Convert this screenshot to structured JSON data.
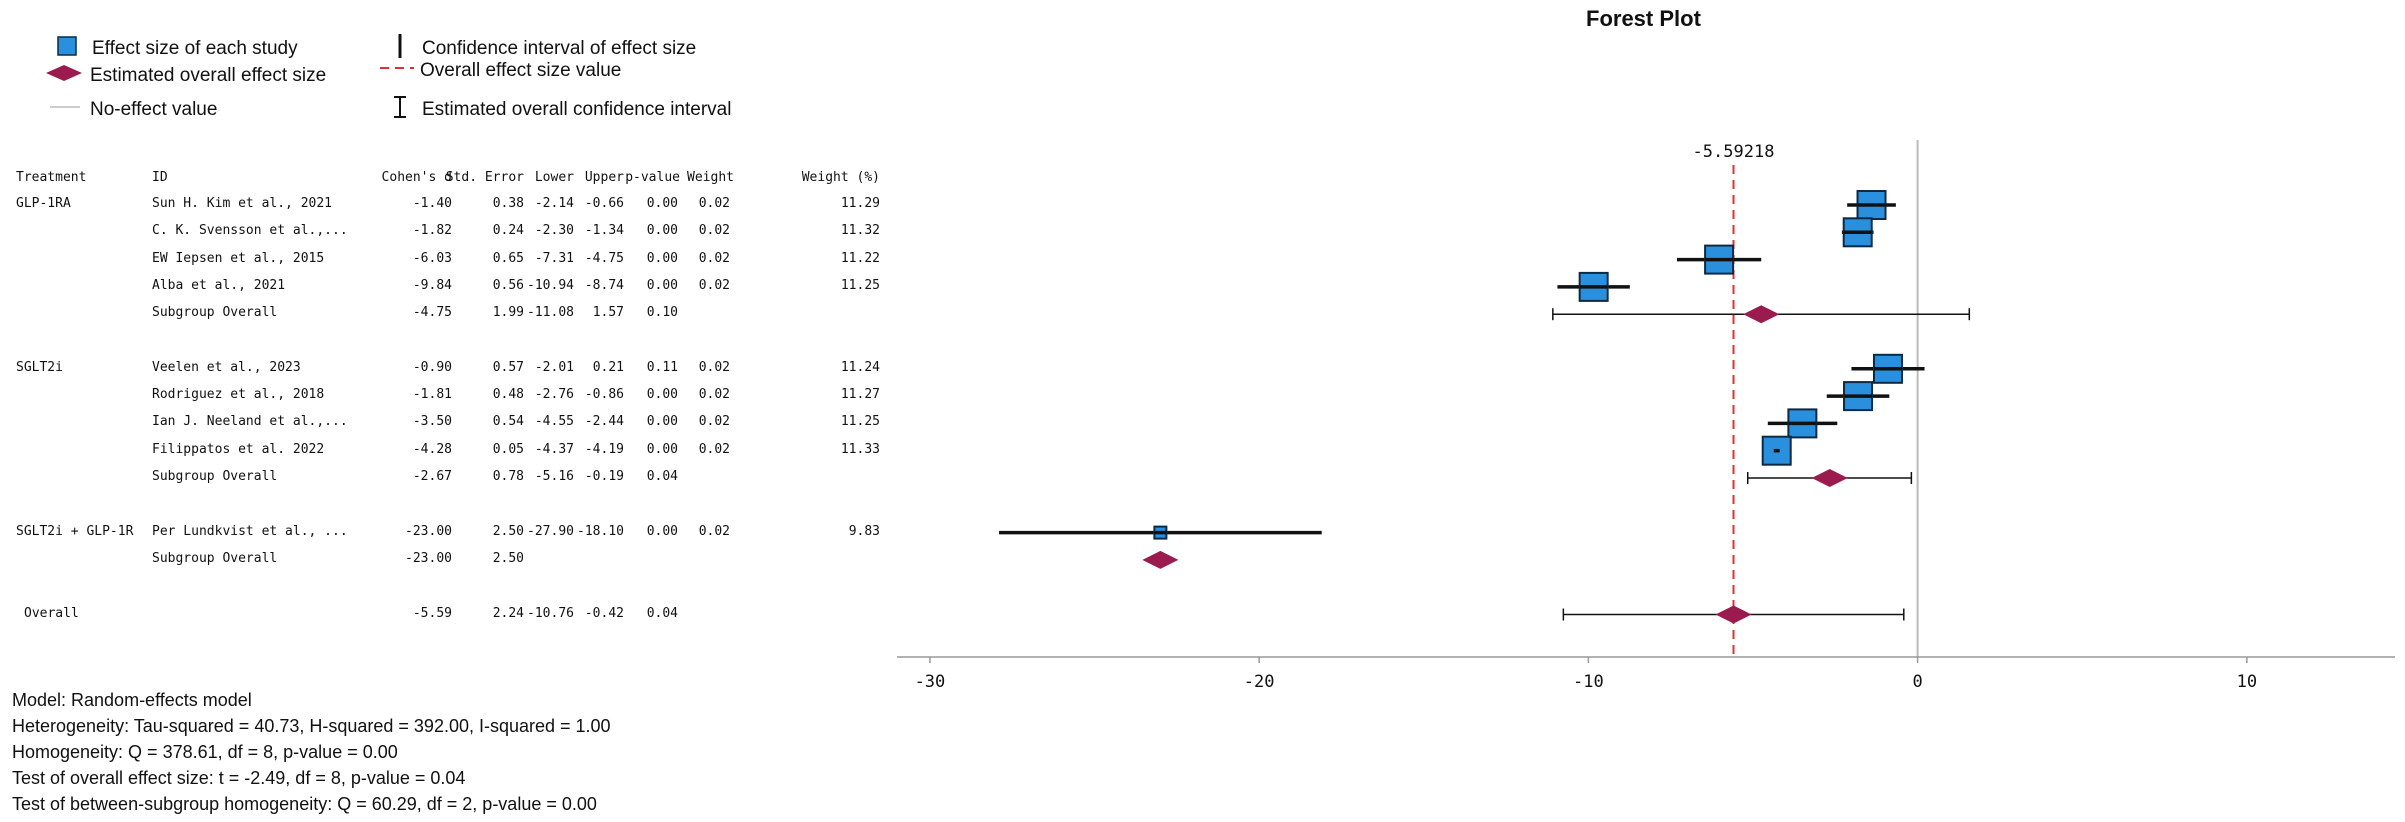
{
  "legend": {
    "study_effect": "Effect size of each study",
    "overall_effect": "Estimated overall effect size",
    "no_effect": "No-effect value",
    "ci_study": "Confidence interval of effect size",
    "overall_value": "Overall effect size value",
    "overall_ci": "Estimated overall confidence interval"
  },
  "columns": [
    "Treatment",
    "ID",
    "Cohen's d",
    "Std. Error",
    "Lower",
    "Upper",
    "p-value",
    "Weight",
    "Weight (%)"
  ],
  "stats": {
    "model": "Model: Random-effects model",
    "heterogeneity": "Heterogeneity: Tau-squared = 40.73, H-squared = 392.00, I-squared = 1.00",
    "homogeneity": "Homogeneity: Q = 378.61, df = 8, p-value = 0.00",
    "overall_test": "Test of overall effect size: t = -2.49, df = 8, p-value = 0.04",
    "between_test": "Test of between-subgroup homogeneity: Q = 60.29, df = 2, p-value = 0.00"
  },
  "colors": {
    "study_fill": "#2a8fdc",
    "study_stroke": "#0d2a45",
    "diamond": "#9b1b4f",
    "ref_line": "#e03030",
    "ci_line": "#111111",
    "zero_line": "#bbbbbb"
  },
  "chart_data": {
    "type": "forest",
    "title": "Forest Plot",
    "xlim": [
      -31,
      14.5
    ],
    "xticks": [
      -30,
      -20,
      -10,
      0,
      10
    ],
    "overall_value": -5.59218,
    "overall_value_label": "-5.59218",
    "no_effect_value": 0,
    "rows": [
      {
        "kind": "study",
        "treatment": "GLP-1RA",
        "id": "Sun H. Kim et al., 2021",
        "d": -1.4,
        "d_text": "-1.40",
        "se": "0.38",
        "lower": -2.14,
        "lower_text": "-2.14",
        "upper": -0.66,
        "upper_text": "-0.66",
        "p": "0.00",
        "weight": "0.02",
        "weight_pct": "11.29",
        "wp": 11.29
      },
      {
        "kind": "study",
        "treatment": "",
        "id": "C. K. Svensson et al.,...",
        "d": -1.82,
        "d_text": "-1.82",
        "se": "0.24",
        "lower": -2.3,
        "lower_text": "-2.30",
        "upper": -1.34,
        "upper_text": "-1.34",
        "p": "0.00",
        "weight": "0.02",
        "weight_pct": "11.32",
        "wp": 11.32
      },
      {
        "kind": "study",
        "treatment": "",
        "id": "EW Iepsen et al., 2015",
        "d": -6.03,
        "d_text": "-6.03",
        "se": "0.65",
        "lower": -7.31,
        "lower_text": "-7.31",
        "upper": -4.75,
        "upper_text": "-4.75",
        "p": "0.00",
        "weight": "0.02",
        "weight_pct": "11.22",
        "wp": 11.22
      },
      {
        "kind": "study",
        "treatment": "",
        "id": "Alba et al., 2021",
        "d": -9.84,
        "d_text": "-9.84",
        "se": "0.56",
        "lower": -10.94,
        "lower_text": "-10.94",
        "upper": -8.74,
        "upper_text": "-8.74",
        "p": "0.00",
        "weight": "0.02",
        "weight_pct": "11.25",
        "wp": 11.25
      },
      {
        "kind": "subgroup",
        "treatment": "",
        "id": "Subgroup Overall",
        "d": -4.75,
        "d_text": "-4.75",
        "se": "1.99",
        "lower": -11.08,
        "lower_text": "-11.08",
        "upper": 1.57,
        "upper_text": "1.57",
        "p": "0.10",
        "weight": "",
        "weight_pct": ""
      },
      {
        "kind": "blank"
      },
      {
        "kind": "study",
        "treatment": "SGLT2i",
        "id": "Veelen et al., 2023",
        "d": -0.9,
        "d_text": "-0.90",
        "se": "0.57",
        "lower": -2.01,
        "lower_text": "-2.01",
        "upper": 0.21,
        "upper_text": "0.21",
        "p": "0.11",
        "weight": "0.02",
        "weight_pct": "11.24",
        "wp": 11.24
      },
      {
        "kind": "study",
        "treatment": "",
        "id": "Rodriguez et al., 2018",
        "d": -1.81,
        "d_text": "-1.81",
        "se": "0.48",
        "lower": -2.76,
        "lower_text": "-2.76",
        "upper": -0.86,
        "upper_text": "-0.86",
        "p": "0.00",
        "weight": "0.02",
        "weight_pct": "11.27",
        "wp": 11.27
      },
      {
        "kind": "study",
        "treatment": "",
        "id": "Ian J. Neeland et al.,...",
        "d": -3.5,
        "d_text": "-3.50",
        "se": "0.54",
        "lower": -4.55,
        "lower_text": "-4.55",
        "upper": -2.44,
        "upper_text": "-2.44",
        "p": "0.00",
        "weight": "0.02",
        "weight_pct": "11.25",
        "wp": 11.25
      },
      {
        "kind": "study",
        "treatment": "",
        "id": "Filippatos et al. 2022",
        "d": -4.28,
        "d_text": "-4.28",
        "se": "0.05",
        "lower": -4.37,
        "lower_text": "-4.37",
        "upper": -4.19,
        "upper_text": "-4.19",
        "p": "0.00",
        "weight": "0.02",
        "weight_pct": "11.33",
        "wp": 11.33
      },
      {
        "kind": "subgroup",
        "treatment": "",
        "id": "Subgroup Overall",
        "d": -2.67,
        "d_text": "-2.67",
        "se": "0.78",
        "lower": -5.16,
        "lower_text": "-5.16",
        "upper": -0.19,
        "upper_text": "-0.19",
        "p": "0.04",
        "weight": "",
        "weight_pct": ""
      },
      {
        "kind": "blank"
      },
      {
        "kind": "study",
        "treatment": "SGLT2i + GLP-1R",
        "id": "Per Lundkvist et al., ...",
        "d": -23.0,
        "d_text": "-23.00",
        "se": "2.50",
        "lower": -27.9,
        "lower_text": "-27.90",
        "upper": -18.1,
        "upper_text": "-18.10",
        "p": "0.00",
        "weight": "0.02",
        "weight_pct": "9.83",
        "wp": 9.83
      },
      {
        "kind": "subgroup",
        "treatment": "",
        "id": "Subgroup Overall",
        "d": -23.0,
        "d_text": "-23.00",
        "se": "2.50",
        "lower": null,
        "lower_text": "",
        "upper": null,
        "upper_text": "",
        "p": "",
        "weight": "",
        "weight_pct": ""
      },
      {
        "kind": "blank"
      },
      {
        "kind": "overall",
        "treatment": "Overall",
        "id": "",
        "d": -5.59,
        "d_text": "-5.59",
        "se": "2.24",
        "lower": -10.76,
        "lower_text": "-10.76",
        "upper": -0.42,
        "upper_text": "-0.42",
        "p": "0.04",
        "weight": "",
        "weight_pct": ""
      }
    ]
  }
}
